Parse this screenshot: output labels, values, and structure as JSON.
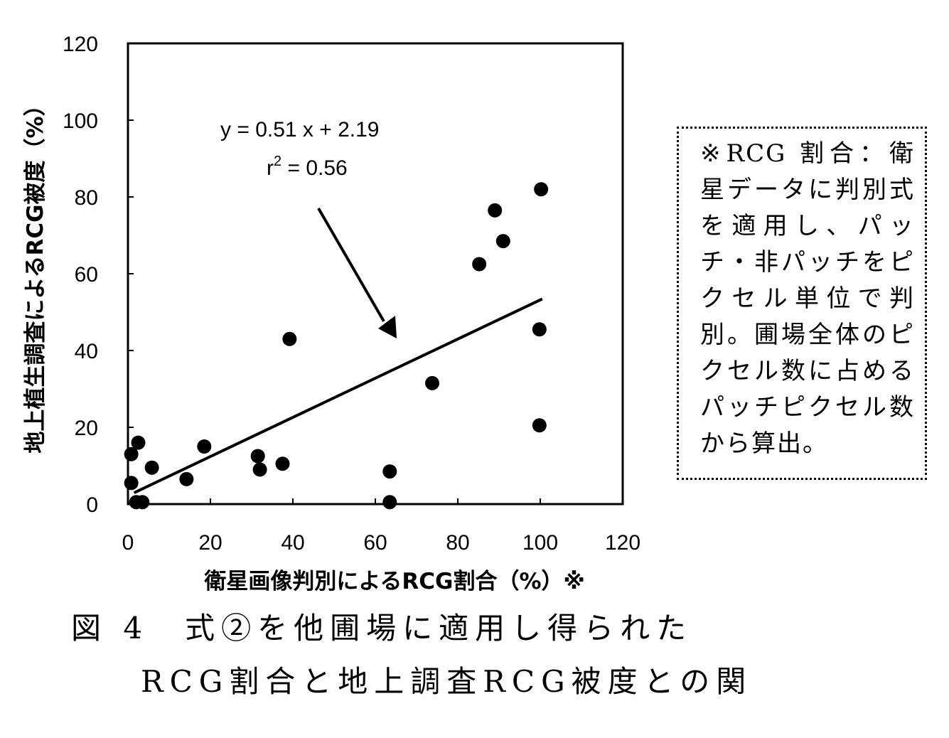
{
  "chart_data": {
    "type": "scatter",
    "title": "",
    "xlabel": "衛星画像判別によるRCG割合（%）※",
    "ylabel": "地上植生調査によるRCG被度（%）",
    "xlim": [
      0,
      120
    ],
    "ylim": [
      0,
      120
    ],
    "x_ticks": [
      0,
      20,
      40,
      60,
      80,
      100,
      120
    ],
    "y_ticks": [
      0,
      20,
      40,
      60,
      80,
      100,
      120
    ],
    "grid": false,
    "points": [
      {
        "x": 0.8,
        "y": 13.0
      },
      {
        "x": 2.5,
        "y": 16.0
      },
      {
        "x": 0.8,
        "y": 5.5
      },
      {
        "x": 2.0,
        "y": 0.5
      },
      {
        "x": 3.5,
        "y": 0.5
      },
      {
        "x": 5.8,
        "y": 9.5
      },
      {
        "x": 14.2,
        "y": 6.5
      },
      {
        "x": 18.5,
        "y": 15.0
      },
      {
        "x": 31.5,
        "y": 12.5
      },
      {
        "x": 32.0,
        "y": 9.0
      },
      {
        "x": 37.5,
        "y": 10.5
      },
      {
        "x": 39.2,
        "y": 43.0
      },
      {
        "x": 63.5,
        "y": 8.5
      },
      {
        "x": 63.5,
        "y": 0.5
      },
      {
        "x": 73.8,
        "y": 31.5
      },
      {
        "x": 85.2,
        "y": 62.5
      },
      {
        "x": 89.0,
        "y": 76.5
      },
      {
        "x": 91.0,
        "y": 68.5
      },
      {
        "x": 99.8,
        "y": 20.5
      },
      {
        "x": 99.8,
        "y": 45.5
      },
      {
        "x": 100.2,
        "y": 82.0
      }
    ],
    "trendline": {
      "slope": 0.51,
      "intercept": 2.19,
      "x_range": [
        1.5,
        100.5
      ]
    },
    "annotation": {
      "equation": "y = 0.51 x + 2.19",
      "r2_base": "r",
      "r2_sup": "2",
      "r2_rest": " = 0.56"
    }
  },
  "note": {
    "text": "※RCG 割合：衛星データに判別式を適用し、パッチ・非パッチをピクセル単位で判別。圃場全体のピクセル数に占めるパッチピクセル数から算出。"
  },
  "caption": {
    "line1": "図 4　式②を他圃場に適用し得られた",
    "line2": "RCG割合と地上調査RCG被度との関"
  }
}
